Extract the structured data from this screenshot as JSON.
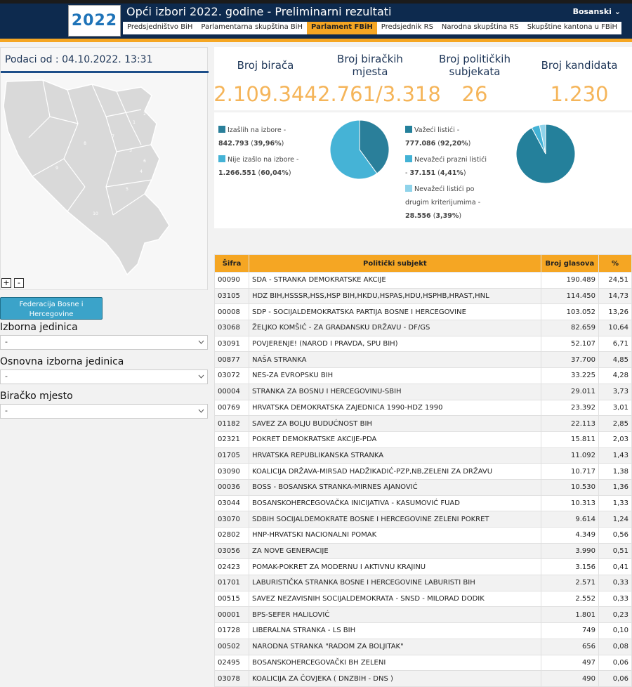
{
  "header": {
    "logo": "2022",
    "title": "Opći izbori 2022. godine - Preliminarni rezultati",
    "language": "Bosanski",
    "nav": [
      "Predsjedništvo BiH",
      "Parlamentarna skupština BiH",
      "Parlament FBiH",
      "Predsjednik RS",
      "Narodna skupština RS",
      "Skupštine kantona u FBiH"
    ],
    "active_nav": "Parlament FBiH"
  },
  "sidebar": {
    "data_as_of": "Podaci od : 04.10.2022. 13:31",
    "map_labels": [
      "1",
      "2",
      "3",
      "4",
      "5",
      "6",
      "7",
      "8",
      "9",
      "10"
    ],
    "zoom_in": "+",
    "zoom_out": "-",
    "entity_button": "Federacija Bosne i Hercegovine",
    "filters": [
      {
        "label": "Izborna jedinica",
        "value": "-"
      },
      {
        "label": "Osnovna izborna jedinica",
        "value": "-"
      },
      {
        "label": "Biračko mjesto",
        "value": "-"
      }
    ]
  },
  "stats": [
    {
      "label": "Broj birača",
      "value": "2.109.344"
    },
    {
      "label": "Broj biračkih mjesta",
      "value": "2.761/3.318"
    },
    {
      "label": "Broj političkih subjekata",
      "value": "26"
    },
    {
      "label": "Broj kandidata",
      "value": "1.230"
    }
  ],
  "turnout": {
    "type": "pie",
    "slices": [
      {
        "label": "Izašlih na izbore",
        "count": "842.793",
        "percent": "39,96%",
        "value": 39.96,
        "color": "#2a7f9a"
      },
      {
        "label": "Nije izašlo na izbore",
        "count": "1.266.551",
        "percent": "60,04%",
        "value": 60.04,
        "color": "#45b3d6"
      }
    ]
  },
  "ballots": {
    "type": "pie",
    "slices": [
      {
        "label": "Važeći listići",
        "count": "777.086",
        "percent": "92,20%",
        "value": 92.2,
        "color": "#24809b"
      },
      {
        "label": "Nevažeći prazni listići",
        "count": "37.151",
        "percent": "4,41%",
        "value": 4.41,
        "color": "#43b2d5"
      },
      {
        "label": "Nevažeći listići po drugim kriterijumima",
        "count": "28.556",
        "percent": "3,39%",
        "value": 3.39,
        "color": "#8fd3ea"
      }
    ]
  },
  "table": {
    "columns": [
      "Šifra",
      "Politički subjekt",
      "Broj glasova",
      "%"
    ],
    "rows": [
      [
        "00090",
        "SDA - STRANKA DEMOKRATSKE AKCIJE",
        "190.489",
        "24,51"
      ],
      [
        "03105",
        "HDZ BIH,HSSSR,HSS,HSP BIH,HKDU,HSPAS,HDU,HSPHB,HRAST,HNL",
        "114.450",
        "14,73"
      ],
      [
        "00008",
        "SDP - SOCIJALDEMOKRATSKA PARTIJA BOSNE I HERCEGOVINE",
        "103.052",
        "13,26"
      ],
      [
        "03068",
        "ŽELJKO KOMŠIĆ - ZA GRAĐANSKU DRŽAVU - DF/GS",
        "82.659",
        "10,64"
      ],
      [
        "03091",
        "POVJERENJE! (NAROD I PRAVDA, SPU BIH)",
        "52.107",
        "6,71"
      ],
      [
        "00877",
        "NAŠA STRANKA",
        "37.700",
        "4,85"
      ],
      [
        "03072",
        "NES-ZA EVROPSKU BIH",
        "33.225",
        "4,28"
      ],
      [
        "00004",
        "STRANKA ZA BOSNU I HERCEGOVINU-SBIH",
        "29.011",
        "3,73"
      ],
      [
        "00769",
        "HRVATSKA DEMOKRATSKA ZAJEDNICA 1990-HDZ 1990",
        "23.392",
        "3,01"
      ],
      [
        "01182",
        "SAVEZ ZA BOLJU BUDUĆNOST BIH",
        "22.113",
        "2,85"
      ],
      [
        "02321",
        "POKRET DEMOKRATSKE AKCIJE-PDA",
        "15.811",
        "2,03"
      ],
      [
        "01705",
        "HRVATSKA REPUBLIKANSKA STRANKA",
        "11.092",
        "1,43"
      ],
      [
        "03090",
        "KOALICIJA DRŽAVA-MIRSAD HADŽIKADIĆ-PZP,NB,ZELENI ZA DRŽAVU",
        "10.717",
        "1,38"
      ],
      [
        "00036",
        "BOSS - BOSANSKA STRANKA-MIRNES AJANOVIĆ",
        "10.530",
        "1,36"
      ],
      [
        "03044",
        "BOSANSKOHERCEGOVAČKA INICIJATIVA - KASUMOVIĆ FUAD",
        "10.313",
        "1,33"
      ],
      [
        "03070",
        "SDBIH SOCIJALDEMOKRATE BOSNE I HERCEGOVINE ZELENI POKRET",
        "9.614",
        "1,24"
      ],
      [
        "02802",
        "HNP-HRVATSKI NACIONALNI POMAK",
        "4.349",
        "0,56"
      ],
      [
        "03056",
        "ZA NOVE GENERACIJE",
        "3.990",
        "0,51"
      ],
      [
        "02423",
        "POMAK-POKRET ZA MODERNU I AKTIVNU KRAJINU",
        "3.156",
        "0,41"
      ],
      [
        "01701",
        "LABURISTIČKA STRANKA BOSNE I HERCEGOVINE LABURISTI BIH",
        "2.571",
        "0,33"
      ],
      [
        "00515",
        "SAVEZ NEZAVISNIH SOCIJALDEMOKRATA - SNSD - MILORAD DODIK",
        "2.552",
        "0,33"
      ],
      [
        "00001",
        "BPS-SEFER HALILOVIĆ",
        "1.801",
        "0,23"
      ],
      [
        "01728",
        "LIBERALNA STRANKA - LS BIH",
        "749",
        "0,10"
      ],
      [
        "00502",
        "NARODNA STRANKA \"RADOM ZA BOLJITAK\"",
        "656",
        "0,08"
      ],
      [
        "02495",
        "BOSANSKOHERCEGOVAČKI BH ZELENI",
        "497",
        "0,06"
      ],
      [
        "03078",
        "KOALICIJA ZA ČOVJEKA ( DNZBIH - DNS )",
        "490",
        "0,06"
      ]
    ]
  }
}
